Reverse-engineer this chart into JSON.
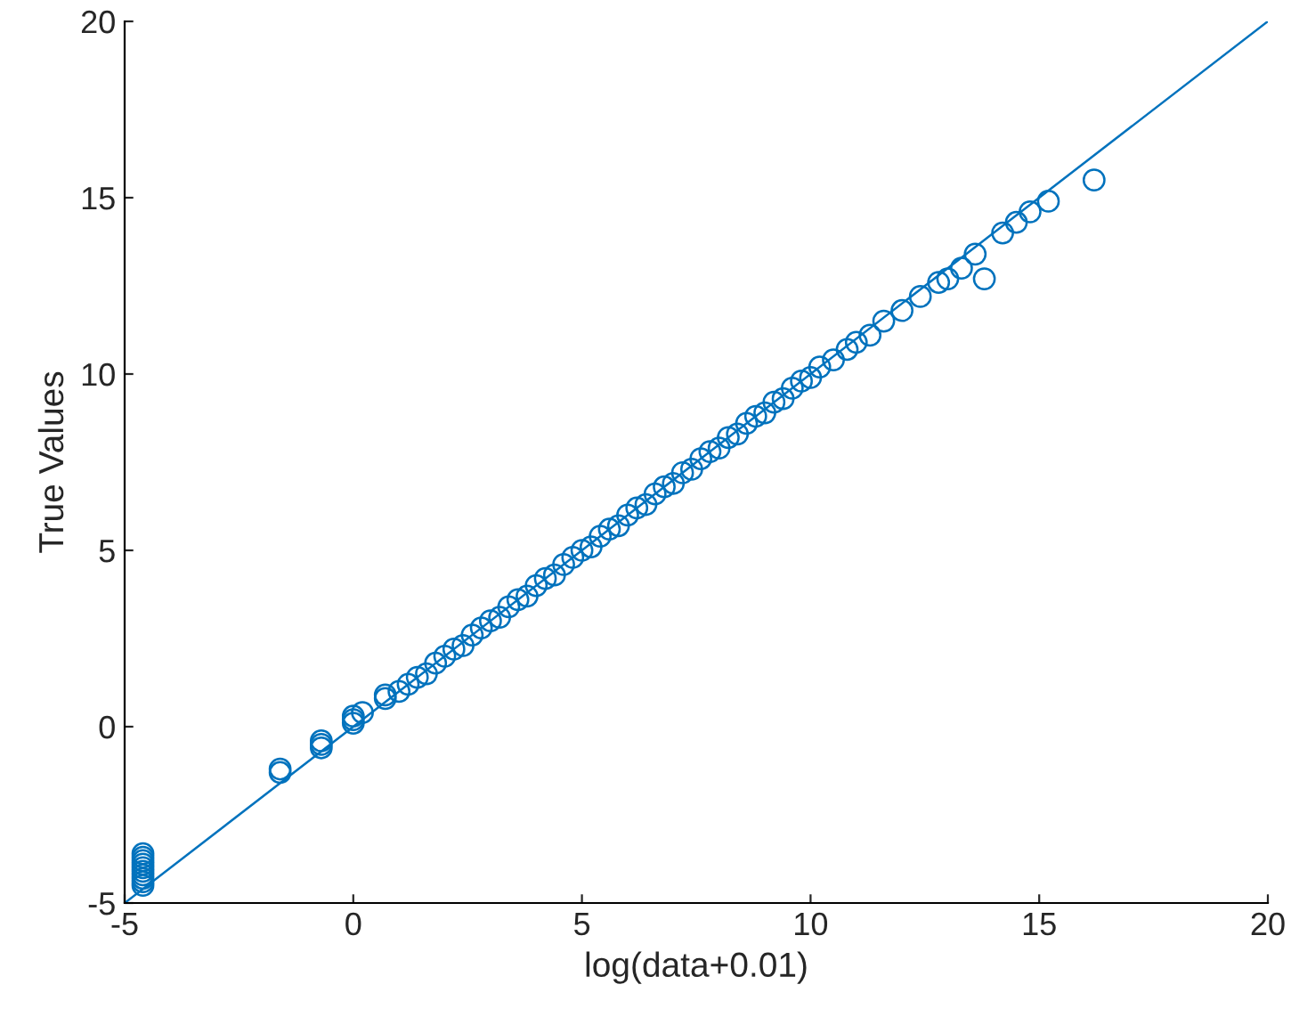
{
  "chart_data": {
    "type": "scatter",
    "xlabel": "log(data+0.01)",
    "ylabel": "True Values",
    "xlim": [
      -5,
      20
    ],
    "ylim": [
      -5,
      20
    ],
    "xticks": [
      -5,
      0,
      5,
      10,
      15,
      20
    ],
    "yticks": [
      -5,
      0,
      5,
      10,
      15,
      20
    ],
    "grid": false,
    "series": [
      {
        "marker": "circle",
        "color": "#0072bd",
        "x": [
          -4.6,
          -4.6,
          -4.6,
          -4.6,
          -4.6,
          -4.6,
          -4.6,
          -4.6,
          -4.6,
          -4.6,
          -1.6,
          -1.6,
          -0.7,
          -0.7,
          -0.7,
          0,
          0,
          0,
          0.2,
          0.7,
          0.7,
          1.0,
          1.2,
          1.4,
          1.6,
          1.8,
          2.0,
          2.2,
          2.4,
          2.6,
          2.8,
          3.0,
          3.2,
          3.4,
          3.6,
          3.8,
          4.0,
          4.2,
          4.4,
          4.6,
          4.8,
          5.0,
          5.2,
          5.4,
          5.6,
          5.8,
          6.0,
          6.2,
          6.4,
          6.6,
          6.8,
          7.0,
          7.2,
          7.4,
          7.6,
          7.8,
          8.0,
          8.2,
          8.4,
          8.6,
          8.8,
          9.0,
          9.2,
          9.4,
          9.6,
          9.8,
          10.0,
          10.2,
          10.5,
          10.8,
          11.0,
          11.3,
          11.6,
          12.0,
          12.4,
          12.8,
          13.0,
          13.3,
          13.6,
          13.8,
          14.2,
          14.5,
          14.8,
          15.2,
          16.2
        ],
        "values": [
          -3.6,
          -3.7,
          -3.8,
          -3.9,
          -4.0,
          -4.1,
          -4.2,
          -4.3,
          -4.4,
          -4.5,
          -1.2,
          -1.3,
          -0.4,
          -0.5,
          -0.6,
          0.1,
          0.2,
          0.3,
          0.4,
          0.8,
          0.9,
          1.0,
          1.2,
          1.4,
          1.5,
          1.8,
          2.0,
          2.2,
          2.3,
          2.6,
          2.8,
          3.0,
          3.1,
          3.4,
          3.6,
          3.7,
          4.0,
          4.2,
          4.3,
          4.6,
          4.8,
          5.0,
          5.1,
          5.4,
          5.6,
          5.7,
          6.0,
          6.2,
          6.3,
          6.6,
          6.8,
          6.9,
          7.2,
          7.3,
          7.6,
          7.8,
          7.9,
          8.2,
          8.3,
          8.6,
          8.8,
          8.9,
          9.2,
          9.3,
          9.6,
          9.8,
          9.9,
          10.2,
          10.4,
          10.7,
          10.9,
          11.1,
          11.5,
          11.8,
          12.2,
          12.6,
          12.7,
          13.0,
          13.4,
          12.7,
          14.0,
          14.3,
          14.6,
          14.9,
          15.5
        ]
      },
      {
        "type": "line",
        "color": "#0072bd",
        "x": [
          -5,
          20
        ],
        "values": [
          -5,
          20
        ]
      }
    ]
  }
}
